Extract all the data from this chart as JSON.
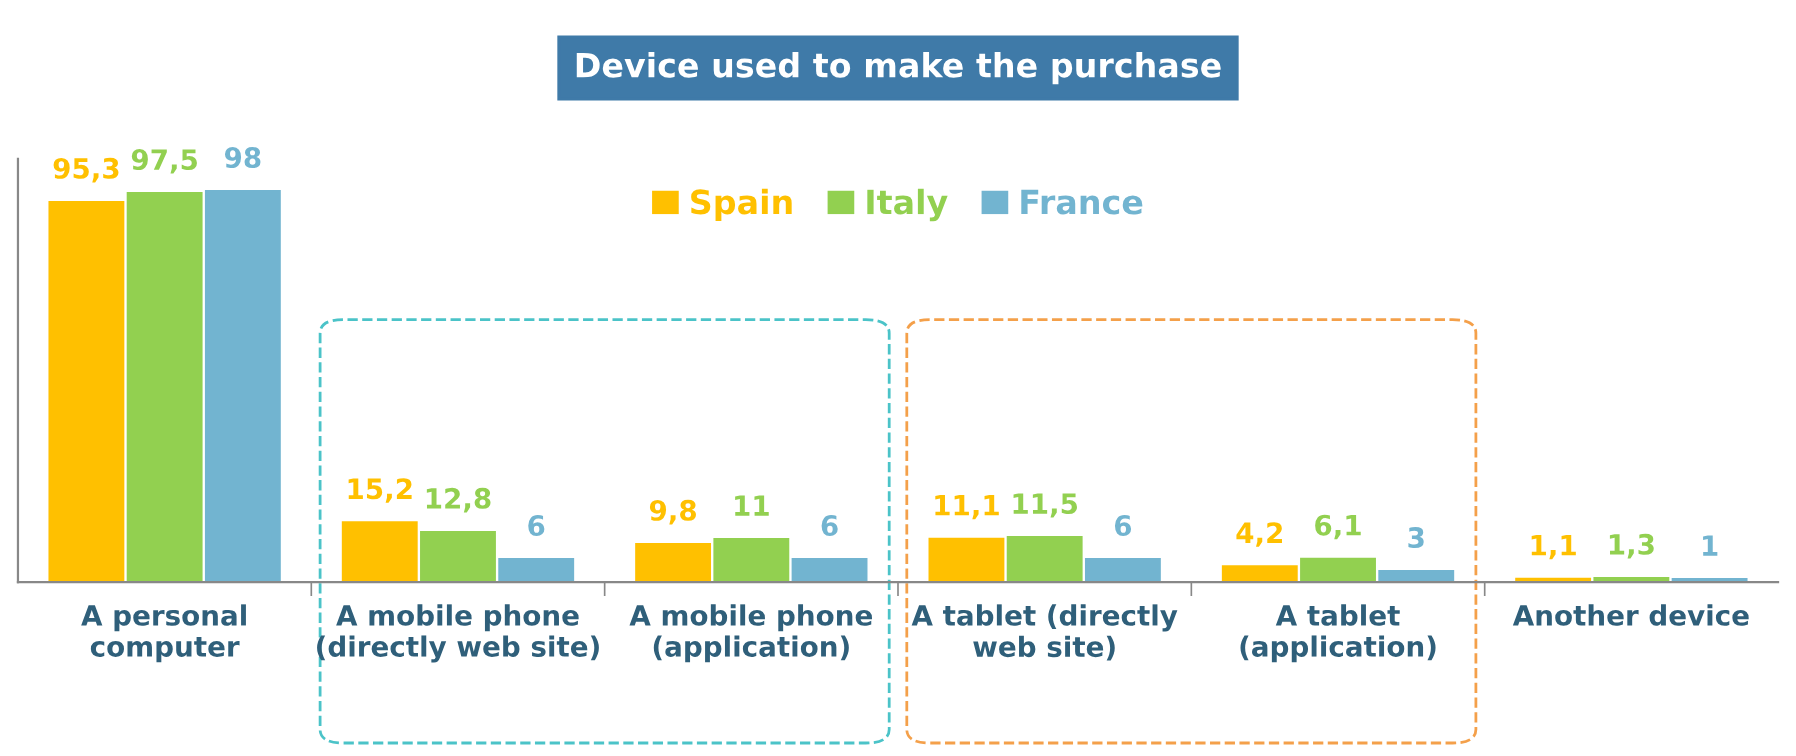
{
  "chart_data": {
    "type": "bar",
    "title": "Device used to make the purchase",
    "categories": [
      "A personal\ncomputer",
      "A mobile phone\n(directly web site)",
      "A mobile phone\n(application)",
      "A tablet (directly\nweb site)",
      "A tablet\n(application)",
      "Another device"
    ],
    "series": [
      {
        "name": "Spain",
        "color": "#ffc000",
        "values": [
          95.3,
          15.2,
          9.8,
          11.1,
          4.2,
          1.1
        ],
        "value_labels": [
          "95,3",
          "15,2",
          "9,8",
          "11,1",
          "4,2",
          "1,1"
        ]
      },
      {
        "name": "Italy",
        "color": "#92d050",
        "values": [
          97.5,
          12.8,
          11,
          11.5,
          6.1,
          1.3
        ],
        "value_labels": [
          "97,5",
          "12,8",
          "11",
          "11,5",
          "6,1",
          "1,3"
        ]
      },
      {
        "name": "France",
        "color": "#72b4d0",
        "values": [
          98,
          6,
          6,
          6,
          3,
          1
        ],
        "value_labels": [
          "98",
          "6",
          "6",
          "6",
          "3",
          "1"
        ]
      }
    ],
    "legend": "top",
    "grid": false
  }
}
